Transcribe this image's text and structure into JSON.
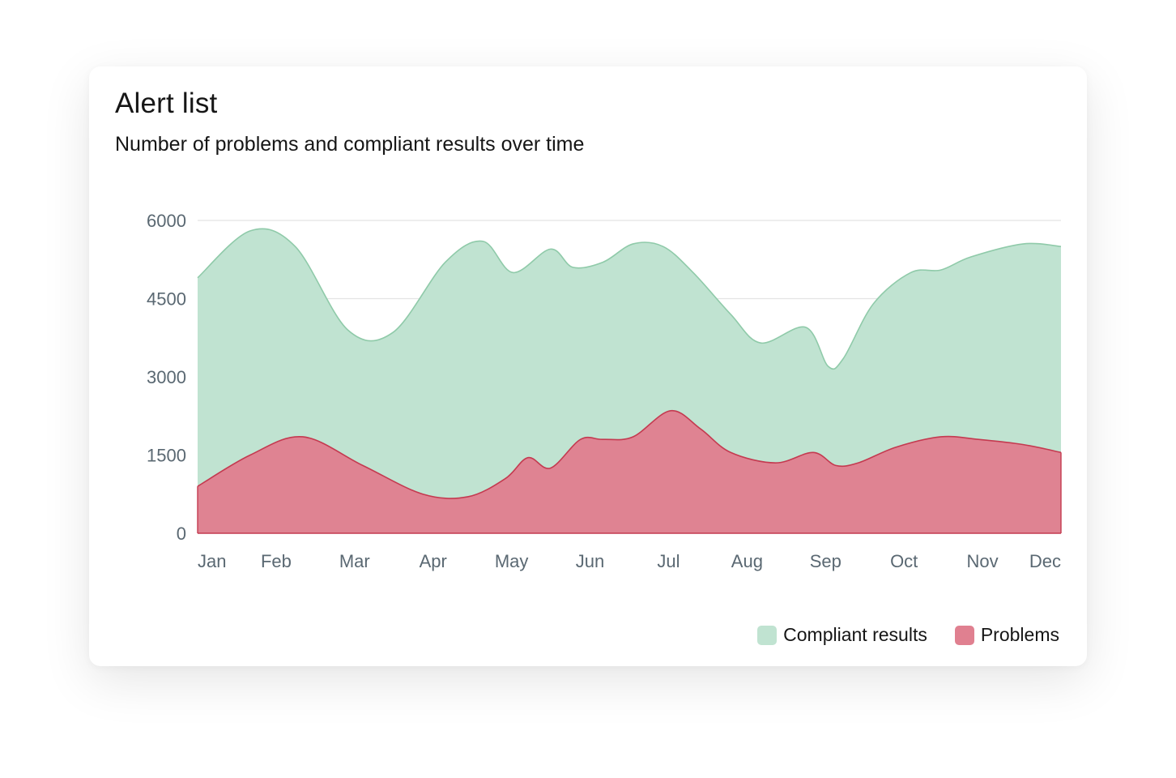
{
  "card": {
    "title": "Alert list",
    "subtitle": "Number of problems and compliant results over time"
  },
  "chart_data": {
    "type": "area",
    "title": "Alert list",
    "subtitle": "Number of problems and compliant results over time",
    "xlabel": "",
    "ylabel": "",
    "x_ticks": [
      "Jan",
      "Feb",
      "Mar",
      "Apr",
      "May",
      "Jun",
      "Jul",
      "Aug",
      "Sep",
      "Oct",
      "Nov",
      "Dec"
    ],
    "y_ticks": [
      0,
      1500,
      3000,
      4500,
      6000
    ],
    "ylim": [
      0,
      6000
    ],
    "grid": true,
    "legend_position": "bottom-right",
    "series": [
      {
        "name": "Compliant results",
        "color": "#c0e3d1",
        "line_color": "#8fcaa9",
        "x": [
          0,
          0.7,
          1.3,
          2.0,
          2.6,
          3.3,
          3.8,
          4.2,
          4.7,
          5.0,
          5.4,
          5.8,
          6.2,
          6.6,
          7.1,
          7.5,
          8.1,
          8.4,
          8.6,
          9.0,
          9.5,
          9.9,
          10.3,
          11.0,
          11.5
        ],
        "values": [
          4900,
          5800,
          5500,
          3900,
          3850,
          5200,
          5600,
          5000,
          5450,
          5100,
          5200,
          5550,
          5500,
          5000,
          4200,
          3650,
          3950,
          3200,
          3350,
          4400,
          5000,
          5050,
          5300,
          5550,
          5500
        ]
      },
      {
        "name": "Problems",
        "color": "#e08090",
        "line_color": "#c43a50",
        "x": [
          0,
          0.7,
          1.4,
          2.2,
          3.0,
          3.6,
          4.1,
          4.4,
          4.7,
          5.1,
          5.4,
          5.8,
          6.3,
          6.7,
          7.1,
          7.7,
          8.2,
          8.5,
          8.8,
          9.3,
          9.9,
          10.4,
          11.0,
          11.5
        ],
        "values": [
          900,
          1500,
          1850,
          1300,
          750,
          700,
          1050,
          1450,
          1250,
          1800,
          1800,
          1850,
          2350,
          2000,
          1550,
          1350,
          1550,
          1300,
          1350,
          1650,
          1850,
          1800,
          1700,
          1550
        ]
      }
    ]
  },
  "legend": {
    "items": [
      {
        "label": "Compliant results",
        "color": "#c0e3d1"
      },
      {
        "label": "Problems",
        "color": "#e08090"
      }
    ]
  }
}
